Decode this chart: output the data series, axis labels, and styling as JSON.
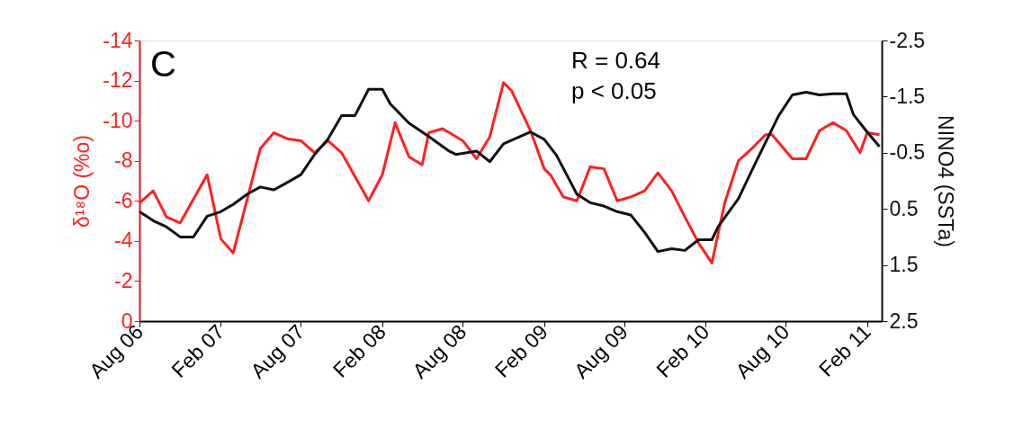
{
  "chart_data": {
    "type": "line",
    "ylabel": "δ¹⁸O (%o)",
    "y2label": "NINO4 (SSTa)",
    "annotations": [
      "C",
      "R = 0.64",
      "p < 0.05"
    ],
    "xlim": [
      "2006-08-01",
      "2011-03-06"
    ],
    "xticks": [
      {
        "value": "2006-08-01",
        "label": "Aug 06"
      },
      {
        "value": "2007-02-01",
        "label": "Feb 07"
      },
      {
        "value": "2007-08-01",
        "label": "Aug 07"
      },
      {
        "value": "2008-02-01",
        "label": "Feb 08"
      },
      {
        "value": "2008-08-01",
        "label": "Aug 08"
      },
      {
        "value": "2009-02-01",
        "label": "Feb 09"
      },
      {
        "value": "2009-08-01",
        "label": "Aug 09"
      },
      {
        "value": "2010-02-01",
        "label": "Feb 10"
      },
      {
        "value": "2010-08-01",
        "label": "Aug 10"
      },
      {
        "value": "2011-02-01",
        "label": "Feb 11"
      }
    ],
    "ylim": [
      0,
      -14
    ],
    "yticks": [
      0,
      -2,
      -4,
      -6,
      -8,
      -10,
      -12,
      -14
    ],
    "y2lim": [
      2.5,
      -2.5
    ],
    "y2ticks": [
      2.5,
      1.5,
      0.5,
      -0.5,
      -1.5,
      -2.5
    ],
    "grid": false,
    "marker": "none",
    "line_style": "solid",
    "series": [
      {
        "color": "#ff2020",
        "x": [
          "2006-08-01",
          "2006-09-01",
          "2006-10-01",
          "2006-11-01",
          "2007-01-01",
          "2007-02-01",
          "2007-03-01",
          "2007-05-01",
          "2007-06-01",
          "2007-07-01",
          "2007-08-01",
          "2007-09-01",
          "2007-10-01",
          "2007-11-01",
          "2008-01-01",
          "2008-02-01",
          "2008-03-01",
          "2008-04-01",
          "2008-05-01",
          "2008-05-16",
          "2008-06-16",
          "2008-08-01",
          "2008-09-01",
          "2008-10-01",
          "2008-11-01",
          "2008-11-19",
          "2009-01-01",
          "2009-02-01",
          "2009-02-15",
          "2009-03-16",
          "2009-04-16",
          "2009-05-16",
          "2009-06-16",
          "2009-07-16",
          "2009-08-16",
          "2009-09-16",
          "2009-10-16",
          "2009-11-16",
          "2009-12-16",
          "2010-01-16",
          "2010-02-15",
          "2010-03-16",
          "2010-04-16",
          "2010-05-16",
          "2010-06-16",
          "2010-07-01",
          "2010-08-16",
          "2010-09-16",
          "2010-10-16",
          "2010-11-16",
          "2010-12-16",
          "2011-01-16",
          "2011-02-01",
          "2011-03-01"
        ],
        "values": [
          -5.9,
          -6.5,
          -5.2,
          -4.9,
          -7.3,
          -4.1,
          -3.4,
          -8.6,
          -9.4,
          -9.1,
          -9.0,
          -8.4,
          -9.0,
          -8.4,
          -6.0,
          -7.3,
          -9.9,
          -8.2,
          -7.8,
          -9.4,
          -9.6,
          -9.0,
          -8.1,
          -9.2,
          -11.9,
          -11.5,
          -9.5,
          -7.6,
          -7.3,
          -6.2,
          -6.0,
          -7.7,
          -7.6,
          -6.0,
          -6.2,
          -6.5,
          -7.4,
          -6.5,
          -5.2,
          -3.9,
          -2.9,
          -5.9,
          -8.0,
          -8.6,
          -9.3,
          -9.3,
          -8.1,
          -8.1,
          -9.5,
          -9.9,
          -9.5,
          -8.4,
          -9.4,
          -9.3
        ]
      },
      {
        "color": "#111111",
        "axis": "y2",
        "x": [
          "2006-08-01",
          "2006-09-01",
          "2006-10-01",
          "2006-11-01",
          "2006-12-01",
          "2007-01-01",
          "2007-02-01",
          "2007-03-01",
          "2007-04-01",
          "2007-05-01",
          "2007-06-01",
          "2007-07-01",
          "2007-08-01",
          "2007-09-01",
          "2007-10-01",
          "2007-11-01",
          "2007-12-01",
          "2008-01-01",
          "2008-02-01",
          "2008-02-19",
          "2008-04-01",
          "2008-05-16",
          "2008-07-01",
          "2008-07-16",
          "2008-09-01",
          "2008-10-01",
          "2008-11-01",
          "2009-01-01",
          "2009-02-01",
          "2009-03-01",
          "2009-04-16",
          "2009-05-16",
          "2009-06-16",
          "2009-07-16",
          "2009-08-16",
          "2009-09-16",
          "2009-10-16",
          "2009-11-16",
          "2009-12-16",
          "2010-01-16",
          "2010-02-15",
          "2010-03-01",
          "2010-04-16",
          "2010-05-16",
          "2010-06-16",
          "2010-07-16",
          "2010-08-16",
          "2010-09-16",
          "2010-10-16",
          "2010-11-16",
          "2010-12-16",
          "2011-01-01",
          "2011-02-01",
          "2011-03-01"
        ],
        "values": [
          0.55,
          0.71,
          0.82,
          1.0,
          1.0,
          0.63,
          0.55,
          0.42,
          0.24,
          0.11,
          0.16,
          0.03,
          -0.11,
          -0.47,
          -0.74,
          -1.16,
          -1.16,
          -1.63,
          -1.63,
          -1.37,
          -1.03,
          -0.79,
          -0.53,
          -0.47,
          -0.53,
          -0.34,
          -0.66,
          -0.87,
          -0.74,
          -0.45,
          0.24,
          0.39,
          0.45,
          0.55,
          0.61,
          0.92,
          1.26,
          1.21,
          1.24,
          1.05,
          1.05,
          0.82,
          0.32,
          -0.18,
          -0.68,
          -1.16,
          -1.53,
          -1.58,
          -1.53,
          -1.55,
          -1.55,
          -1.18,
          -0.87,
          -0.61
        ]
      }
    ]
  }
}
